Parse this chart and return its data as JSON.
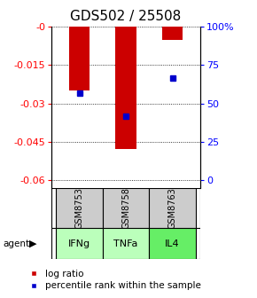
{
  "title": "GDS502 / 25508",
  "categories": [
    "GSM8753",
    "GSM8758",
    "GSM8763"
  ],
  "agents": [
    "IFNg",
    "TNFa",
    "IL4"
  ],
  "log_ratios": [
    -0.025,
    -0.048,
    -0.005
  ],
  "percentile_ranks": [
    -0.026,
    -0.035,
    -0.02
  ],
  "ylim_left": [
    -0.063,
    0.0
  ],
  "ylim_right": [
    0,
    100
  ],
  "yticks_left": [
    0,
    -0.015,
    -0.03,
    -0.045,
    -0.06
  ],
  "ytick_labels_left": [
    "-0",
    "-0.015",
    "-0.03",
    "-0.045",
    "-0.06"
  ],
  "yticks_right_vals": [
    0,
    -0.015,
    -0.03,
    -0.045,
    -0.06
  ],
  "ytick_labels_right": [
    "100%",
    "75",
    "50",
    "25",
    "0"
  ],
  "bar_color": "#cc0000",
  "dot_color": "#0000cc",
  "agent_colors": [
    "#bbffbb",
    "#bbffbb",
    "#66ee66"
  ],
  "gsm_bg": "#cccccc",
  "title_fontsize": 11,
  "tick_fontsize": 8,
  "legend_fontsize": 7.5,
  "bar_width": 0.45
}
